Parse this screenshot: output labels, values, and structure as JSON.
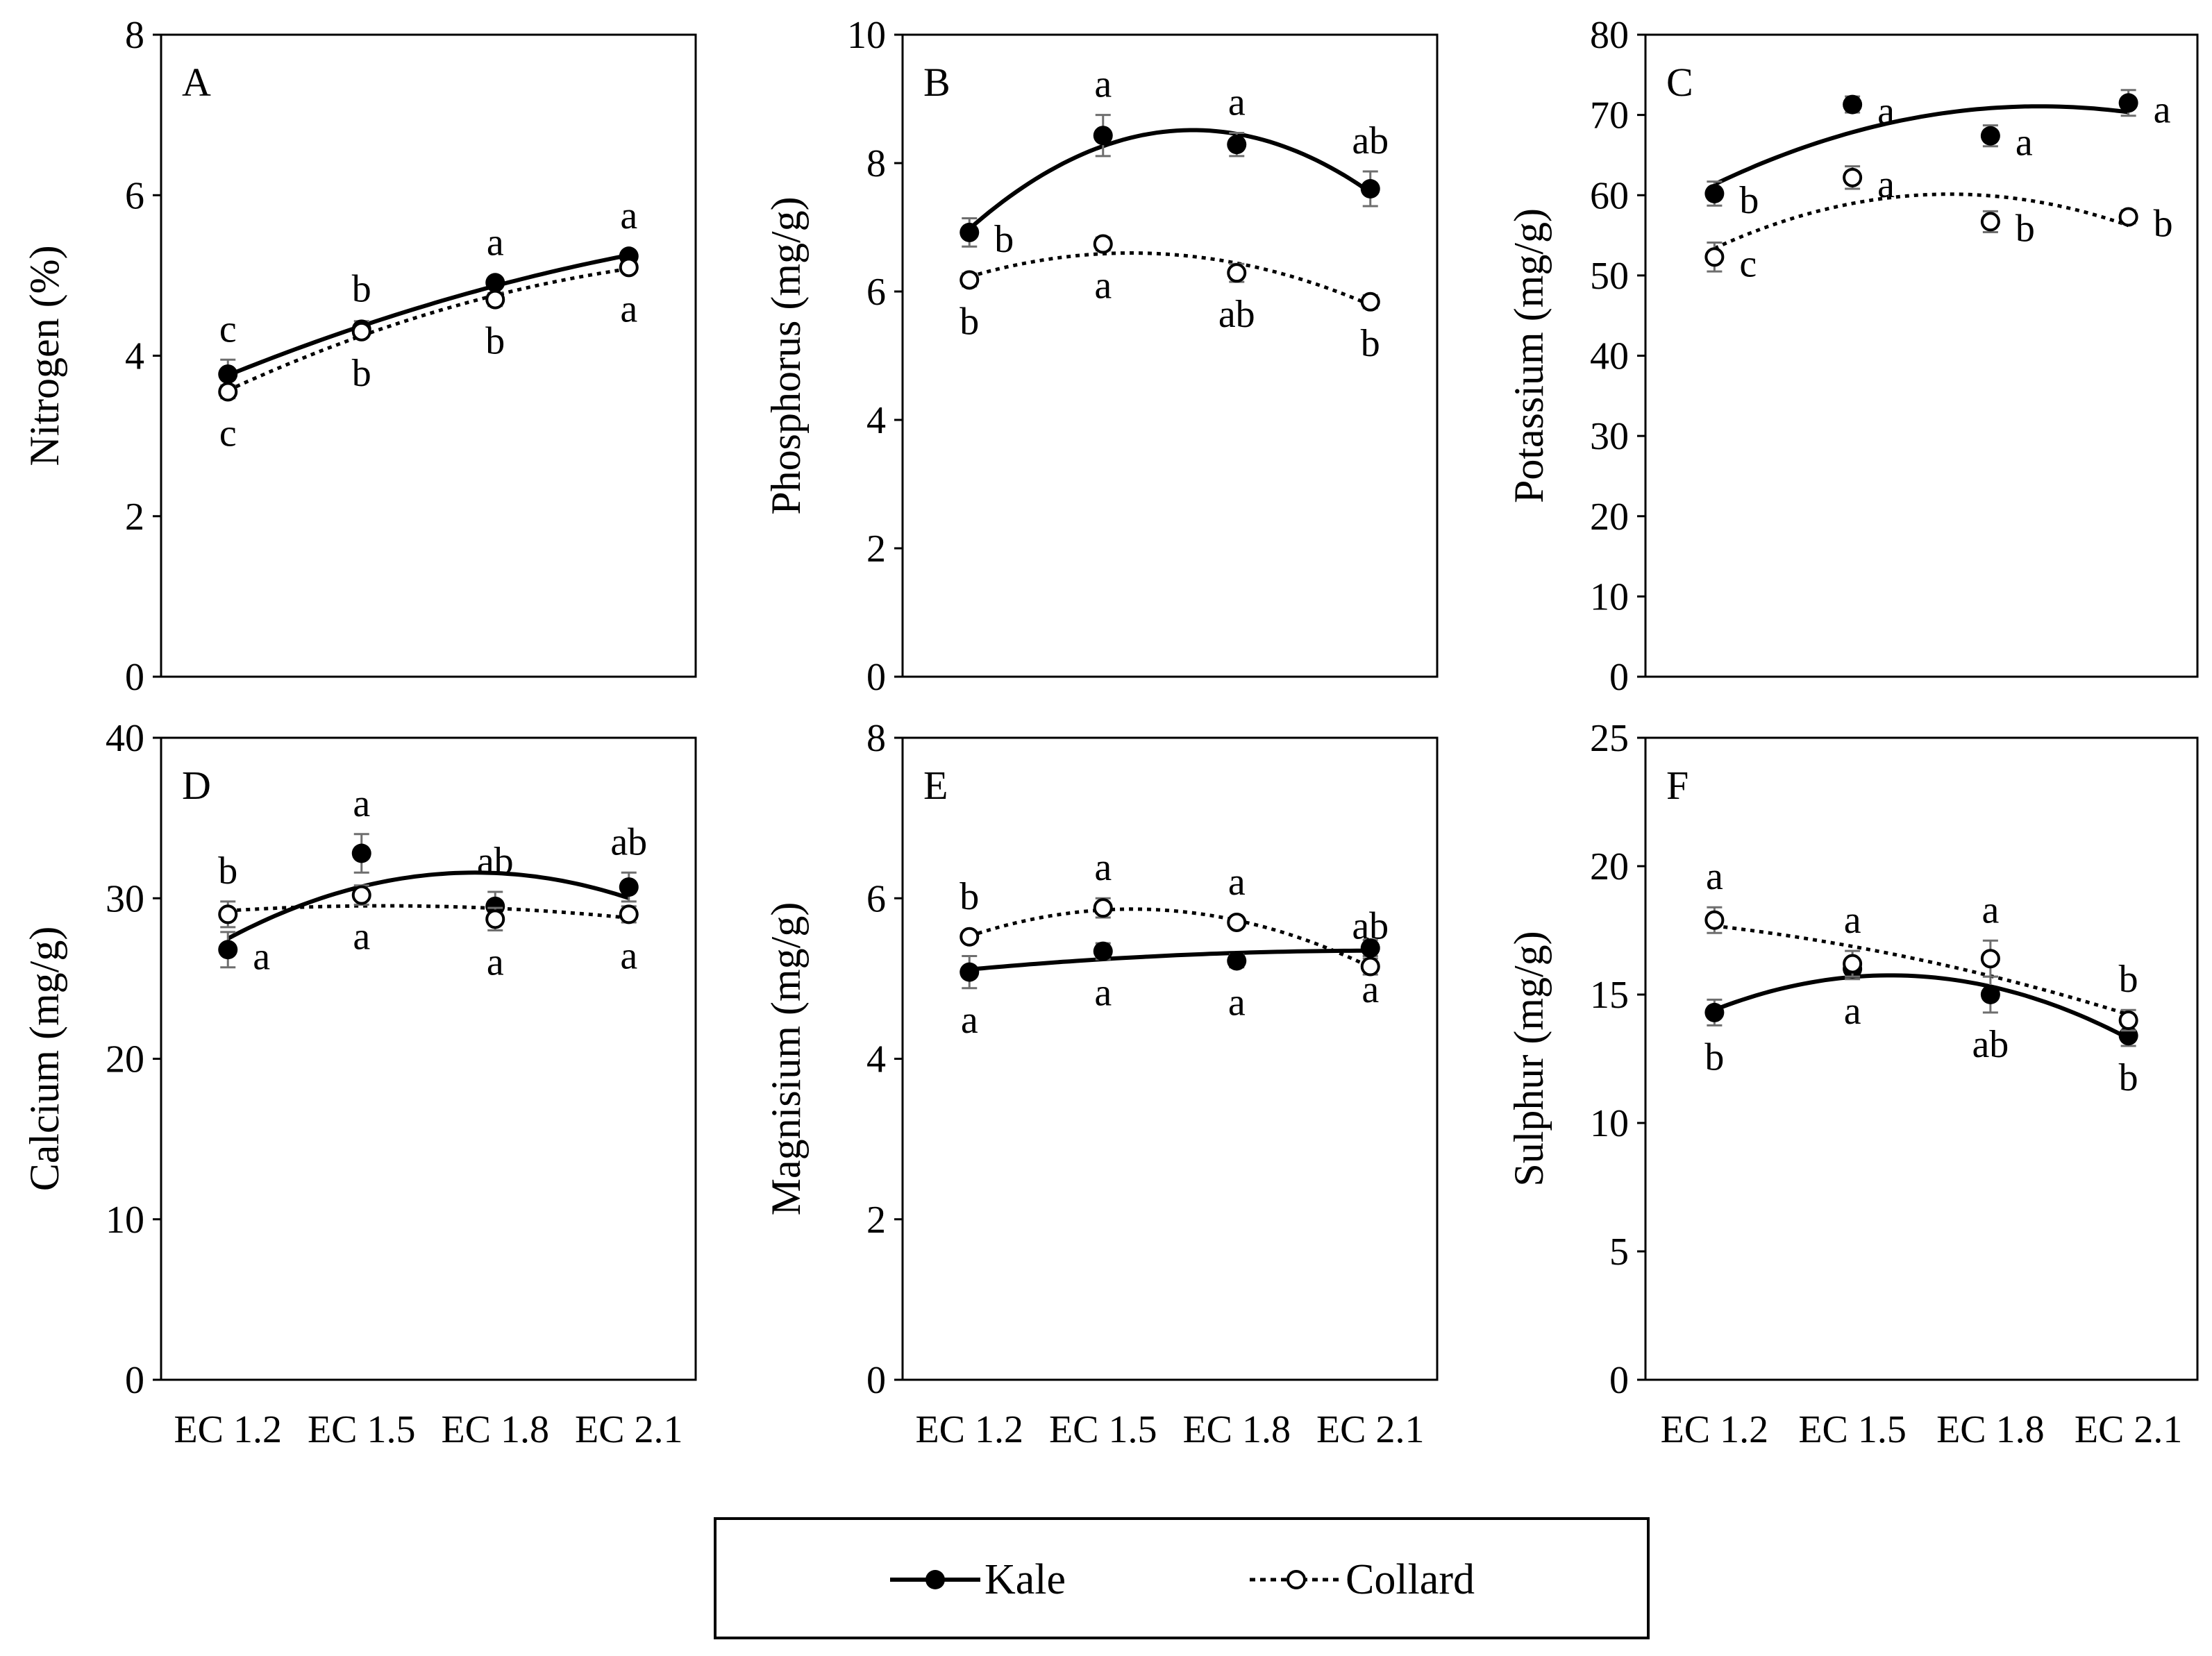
{
  "categories": [
    "EC 1.2",
    "EC 1.5",
    "EC 1.8",
    "EC 2.1"
  ],
  "legend": {
    "position": "bottom-center",
    "entries": [
      {
        "name": "Kale",
        "marker": "filled-circle",
        "line": "solid"
      },
      {
        "name": "Collard",
        "marker": "open-circle",
        "line": "dotted"
      }
    ]
  },
  "colors": {
    "ink": "#000000",
    "error_bar": "#6e6e6e",
    "background": "#ffffff"
  },
  "chart_data": [
    {
      "type": "scatter",
      "panel": "A",
      "title": "",
      "xlabel": "",
      "ylabel": "Nitrogen (%)",
      "ylim": [
        0,
        8
      ],
      "yticks": [
        0,
        2,
        4,
        6,
        8
      ],
      "categories": [
        "EC 1.2",
        "EC 1.5",
        "EC 1.8",
        "EC 2.1"
      ],
      "series": [
        {
          "name": "Kale",
          "values": [
            3.77,
            4.33,
            4.91,
            5.24
          ],
          "errors": [
            0.18,
            0.1,
            0.06,
            0.06
          ],
          "labels": [
            "c",
            "b",
            "a",
            "a"
          ],
          "label_pos": [
            "above",
            "above",
            "above",
            "above"
          ]
        },
        {
          "name": "Collard",
          "values": [
            3.55,
            4.3,
            4.7,
            5.1
          ],
          "errors": [
            0.08,
            0.06,
            0.08,
            0.06
          ],
          "labels": [
            "c",
            "b",
            "b",
            "a"
          ],
          "label_pos": [
            "below",
            "below",
            "below",
            "below"
          ]
        }
      ]
    },
    {
      "type": "scatter",
      "panel": "B",
      "title": "",
      "xlabel": "",
      "ylabel": "Phosphorus (mg/g)",
      "ylim": [
        0,
        10
      ],
      "yticks": [
        0,
        2,
        4,
        6,
        8,
        10
      ],
      "categories": [
        "EC 1.2",
        "EC 1.5",
        "EC 1.8",
        "EC 2.1"
      ],
      "series": [
        {
          "name": "Kale",
          "values": [
            6.92,
            8.43,
            8.29,
            7.6
          ],
          "errors": [
            0.22,
            0.32,
            0.18,
            0.27
          ],
          "labels": [
            "b",
            "a",
            "a",
            "ab"
          ],
          "label_pos": [
            "right",
            "above",
            "above",
            "above"
          ]
        },
        {
          "name": "Collard",
          "values": [
            6.18,
            6.74,
            6.29,
            5.84
          ],
          "errors": [
            0.1,
            0.1,
            0.14,
            0.1
          ],
          "labels": [
            "b",
            "a",
            "ab",
            "b"
          ],
          "label_pos": [
            "below",
            "below",
            "below",
            "below"
          ]
        }
      ]
    },
    {
      "type": "scatter",
      "panel": "C",
      "title": "",
      "xlabel": "",
      "ylabel": "Potassium (mg/g)",
      "ylim": [
        0,
        80
      ],
      "yticks": [
        0,
        10,
        20,
        30,
        40,
        50,
        60,
        70,
        80
      ],
      "categories": [
        "EC 1.2",
        "EC 1.5",
        "EC 1.8",
        "EC 2.1"
      ],
      "series": [
        {
          "name": "Kale",
          "values": [
            60.2,
            71.3,
            67.4,
            71.5
          ],
          "errors": [
            1.5,
            1.0,
            1.3,
            1.6
          ],
          "labels": [
            "b",
            "a",
            "a",
            "a"
          ],
          "label_pos": [
            "right",
            "right",
            "right",
            "right"
          ]
        },
        {
          "name": "Collard",
          "values": [
            52.3,
            62.2,
            56.7,
            57.3
          ],
          "errors": [
            1.8,
            1.4,
            1.3,
            0.8
          ],
          "labels": [
            "c",
            "a",
            "b",
            "b"
          ],
          "label_pos": [
            "right",
            "right",
            "right",
            "right"
          ]
        }
      ]
    },
    {
      "type": "scatter",
      "panel": "D",
      "title": "",
      "xlabel": "",
      "ylabel": "Calcium (mg/g)",
      "ylim": [
        0,
        40
      ],
      "yticks": [
        0,
        10,
        20,
        30,
        40
      ],
      "categories": [
        "EC 1.2",
        "EC 1.5",
        "EC 1.8",
        "EC 2.1"
      ],
      "series": [
        {
          "name": "Kale",
          "values": [
            26.8,
            32.8,
            29.5,
            30.7
          ],
          "errors": [
            1.1,
            1.2,
            0.9,
            0.9
          ],
          "labels": [
            "a",
            "a",
            "ab",
            "ab"
          ],
          "label_pos": [
            "right",
            "above",
            "above",
            "above"
          ]
        },
        {
          "name": "Collard",
          "values": [
            29.0,
            30.2,
            28.7,
            29.0
          ],
          "errors": [
            0.8,
            0.6,
            0.7,
            0.5
          ],
          "labels": [
            "b",
            "a",
            "a",
            "a"
          ],
          "label_pos": [
            "above",
            "below",
            "below",
            "below"
          ]
        }
      ]
    },
    {
      "type": "scatter",
      "panel": "E",
      "title": "",
      "xlabel": "",
      "ylabel": "Magnisium (mg/g)",
      "ylim": [
        0,
        8
      ],
      "yticks": [
        0,
        2,
        4,
        6,
        8
      ],
      "categories": [
        "EC 1.2",
        "EC 1.5",
        "EC 1.8",
        "EC 2.1"
      ],
      "series": [
        {
          "name": "Kale",
          "values": [
            5.08,
            5.34,
            5.22,
            5.38
          ],
          "errors": [
            0.2,
            0.1,
            0.08,
            0.1
          ],
          "labels": [
            "a",
            "a",
            "a",
            "a"
          ],
          "label_pos": [
            "below",
            "below",
            "below",
            "below"
          ]
        },
        {
          "name": "Collard",
          "values": [
            5.52,
            5.88,
            5.7,
            5.15
          ],
          "errors": [
            0.06,
            0.12,
            0.06,
            0.1
          ],
          "labels": [
            "b",
            "a",
            "a",
            "ab"
          ],
          "label_pos": [
            "above",
            "above",
            "above",
            "above"
          ]
        }
      ]
    },
    {
      "type": "scatter",
      "panel": "F",
      "title": "",
      "xlabel": "",
      "ylabel": "Sulphur (mg/g)",
      "ylim": [
        0,
        25
      ],
      "yticks": [
        0,
        5,
        10,
        15,
        20,
        25
      ],
      "categories": [
        "EC 1.2",
        "EC 1.5",
        "EC 1.8",
        "EC 2.1"
      ],
      "series": [
        {
          "name": "Kale",
          "values": [
            14.3,
            16.0,
            15.0,
            13.4
          ],
          "errors": [
            0.5,
            0.4,
            0.7,
            0.4
          ],
          "labels": [
            "b",
            "a",
            "ab",
            "b"
          ],
          "label_pos": [
            "below",
            "below",
            "below",
            "below"
          ]
        },
        {
          "name": "Collard",
          "values": [
            17.9,
            16.2,
            16.4,
            14.0
          ],
          "errors": [
            0.5,
            0.5,
            0.7,
            0.4
          ],
          "labels": [
            "a",
            "a",
            "a",
            "b"
          ],
          "label_pos": [
            "above",
            "above",
            "above",
            "above"
          ]
        }
      ]
    }
  ]
}
